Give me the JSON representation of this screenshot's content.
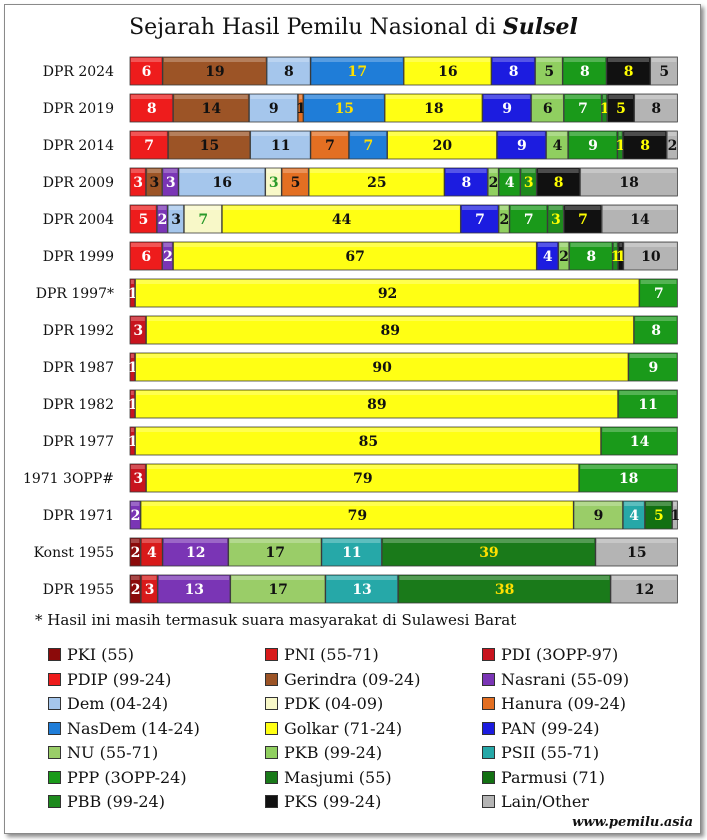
{
  "chart_data": {
    "type": "bar",
    "orientation": "horizontal",
    "stacked": true,
    "title_main": "Sejarah Hasil Pemilu Nasional di ",
    "title_emph": "Sulsel",
    "footnote": "* Hasil ini masih termasuk suara masyarakat di Sulawesi Barat",
    "credit": "www.pemilu.asia",
    "rows": [
      {
        "label": "DPR 2024",
        "segments": [
          {
            "party": "PDIP",
            "value": 6,
            "label": "6"
          },
          {
            "party": "Gerindra",
            "value": 19,
            "label": "19"
          },
          {
            "party": "Dem",
            "value": 8,
            "label": "8"
          },
          {
            "party": "NasDem",
            "value": 17,
            "label": "17"
          },
          {
            "party": "Golkar",
            "value": 16,
            "label": "16"
          },
          {
            "party": "PAN",
            "value": 8,
            "label": "8"
          },
          {
            "party": "PKB",
            "value": 5,
            "label": "5"
          },
          {
            "party": "PPP",
            "value": 8,
            "label": "8"
          },
          {
            "party": "PKS",
            "value": 8,
            "label": "8"
          },
          {
            "party": "Lain/Other",
            "value": 5,
            "label": "5"
          }
        ]
      },
      {
        "label": "DPR 2019",
        "segments": [
          {
            "party": "PDIP",
            "value": 8,
            "label": "8"
          },
          {
            "party": "Gerindra",
            "value": 14,
            "label": "14"
          },
          {
            "party": "Dem",
            "value": 9,
            "label": "9"
          },
          {
            "party": "Hanura",
            "value": 1,
            "label": "1"
          },
          {
            "party": "NasDem",
            "value": 15,
            "label": "15"
          },
          {
            "party": "Golkar",
            "value": 18,
            "label": "18"
          },
          {
            "party": "PAN",
            "value": 9,
            "label": "9"
          },
          {
            "party": "PKB",
            "value": 6,
            "label": "6"
          },
          {
            "party": "PPP",
            "value": 7,
            "label": "7"
          },
          {
            "party": "PBB",
            "value": 1,
            "label": "1"
          },
          {
            "party": "PKS",
            "value": 5,
            "label": "5"
          },
          {
            "party": "Lain/Other",
            "value": 8,
            "label": "8"
          }
        ]
      },
      {
        "label": "DPR 2014",
        "segments": [
          {
            "party": "PDIP",
            "value": 7,
            "label": "7"
          },
          {
            "party": "Gerindra",
            "value": 15,
            "label": "15"
          },
          {
            "party": "Dem",
            "value": 11,
            "label": "11"
          },
          {
            "party": "Hanura",
            "value": 7,
            "label": "7"
          },
          {
            "party": "NasDem",
            "value": 7,
            "label": "7"
          },
          {
            "party": "Golkar",
            "value": 20,
            "label": "20"
          },
          {
            "party": "PAN",
            "value": 9,
            "label": "9"
          },
          {
            "party": "PKB",
            "value": 4,
            "label": "4"
          },
          {
            "party": "PPP",
            "value": 9,
            "label": "9"
          },
          {
            "party": "PBB",
            "value": 1,
            "label": "1"
          },
          {
            "party": "PKS",
            "value": 8,
            "label": "8"
          },
          {
            "party": "Lain/Other",
            "value": 2,
            "label": "2"
          }
        ]
      },
      {
        "label": "DPR 2009",
        "segments": [
          {
            "party": "PDIP",
            "value": 3,
            "label": "3"
          },
          {
            "party": "Gerindra",
            "value": 3,
            "label": "3"
          },
          {
            "party": "Nasrani",
            "value": 3,
            "label": "3"
          },
          {
            "party": "Dem",
            "value": 16,
            "label": "16"
          },
          {
            "party": "PDK",
            "value": 3,
            "label": "3"
          },
          {
            "party": "Hanura",
            "value": 5,
            "label": "5"
          },
          {
            "party": "Golkar",
            "value": 25,
            "label": "25"
          },
          {
            "party": "PAN",
            "value": 8,
            "label": "8"
          },
          {
            "party": "PKB",
            "value": 2,
            "label": "2"
          },
          {
            "party": "PPP",
            "value": 4,
            "label": "4"
          },
          {
            "party": "PBB",
            "value": 3,
            "label": "3"
          },
          {
            "party": "PKS",
            "value": 8,
            "label": "8"
          },
          {
            "party": "Lain/Other",
            "value": 18,
            "label": "18"
          }
        ]
      },
      {
        "label": "DPR 2004",
        "segments": [
          {
            "party": "PDIP",
            "value": 5,
            "label": "5"
          },
          {
            "party": "Nasrani",
            "value": 2,
            "label": "2"
          },
          {
            "party": "Dem",
            "value": 3,
            "label": "3"
          },
          {
            "party": "PDK",
            "value": 7,
            "label": "7"
          },
          {
            "party": "Golkar",
            "value": 44,
            "label": "44"
          },
          {
            "party": "PAN",
            "value": 7,
            "label": "7"
          },
          {
            "party": "PKB",
            "value": 2,
            "label": "2"
          },
          {
            "party": "PPP",
            "value": 7,
            "label": "7"
          },
          {
            "party": "PBB",
            "value": 3,
            "label": "3"
          },
          {
            "party": "PKS",
            "value": 7,
            "label": "7"
          },
          {
            "party": "Lain/Other",
            "value": 14,
            "label": "14"
          }
        ]
      },
      {
        "label": "DPR 1999",
        "segments": [
          {
            "party": "PDIP",
            "value": 6,
            "label": "6"
          },
          {
            "party": "Nasrani",
            "value": 2,
            "label": "2"
          },
          {
            "party": "Golkar",
            "value": 67,
            "label": "67"
          },
          {
            "party": "PAN",
            "value": 4,
            "label": "4"
          },
          {
            "party": "PKB",
            "value": 2,
            "label": "2"
          },
          {
            "party": "PPP",
            "value": 8,
            "label": "8"
          },
          {
            "party": "PBB",
            "value": 1,
            "label": "1"
          },
          {
            "party": "PKS",
            "value": 1,
            "label": "1"
          },
          {
            "party": "Lain/Other",
            "value": 10,
            "label": "10"
          }
        ]
      },
      {
        "label": "DPR 1997*",
        "segments": [
          {
            "party": "PDI",
            "value": 1,
            "label": "1"
          },
          {
            "party": "Golkar",
            "value": 92,
            "label": "92"
          },
          {
            "party": "PPP",
            "value": 7,
            "label": "7"
          }
        ]
      },
      {
        "label": "DPR 1992",
        "segments": [
          {
            "party": "PDI",
            "value": 3,
            "label": "3"
          },
          {
            "party": "Golkar",
            "value": 89,
            "label": "89"
          },
          {
            "party": "PPP",
            "value": 8,
            "label": "8"
          }
        ]
      },
      {
        "label": "DPR 1987",
        "segments": [
          {
            "party": "PDI",
            "value": 1,
            "label": "1"
          },
          {
            "party": "Golkar",
            "value": 90,
            "label": "90"
          },
          {
            "party": "PPP",
            "value": 9,
            "label": "9"
          }
        ]
      },
      {
        "label": "DPR 1982",
        "segments": [
          {
            "party": "PDI",
            "value": 1,
            "label": "1"
          },
          {
            "party": "Golkar",
            "value": 89,
            "label": "89"
          },
          {
            "party": "PPP",
            "value": 11,
            "label": "11"
          }
        ]
      },
      {
        "label": "DPR 1977",
        "segments": [
          {
            "party": "PDI",
            "value": 1,
            "label": "1"
          },
          {
            "party": "Golkar",
            "value": 85,
            "label": "85"
          },
          {
            "party": "PPP",
            "value": 14,
            "label": "14"
          }
        ]
      },
      {
        "label": "1971 3OPP#",
        "segments": [
          {
            "party": "PDI",
            "value": 3,
            "label": "3"
          },
          {
            "party": "Golkar",
            "value": 79,
            "label": "79"
          },
          {
            "party": "PPP",
            "value": 18,
            "label": "18"
          }
        ]
      },
      {
        "label": "DPR 1971",
        "segments": [
          {
            "party": "Nasrani",
            "value": 2,
            "label": "2"
          },
          {
            "party": "Golkar",
            "value": 79,
            "label": "79"
          },
          {
            "party": "NU",
            "value": 9,
            "label": "9"
          },
          {
            "party": "PSII",
            "value": 4,
            "label": "4"
          },
          {
            "party": "Parmusi",
            "value": 5,
            "label": "5"
          },
          {
            "party": "Lain/Other",
            "value": 1,
            "label": "1"
          }
        ]
      },
      {
        "label": "Konst 1955",
        "segments": [
          {
            "party": "PKI",
            "value": 2,
            "label": "2"
          },
          {
            "party": "PNI",
            "value": 4,
            "label": "4"
          },
          {
            "party": "Nasrani",
            "value": 12,
            "label": "12"
          },
          {
            "party": "NU",
            "value": 17,
            "label": "17"
          },
          {
            "party": "PSII",
            "value": 11,
            "label": "11"
          },
          {
            "party": "Masjumi",
            "value": 39,
            "label": "39"
          },
          {
            "party": "Lain/Other",
            "value": 15,
            "label": "15"
          }
        ]
      },
      {
        "label": "DPR 1955",
        "segments": [
          {
            "party": "PKI",
            "value": 2,
            "label": "2"
          },
          {
            "party": "PNI",
            "value": 3,
            "label": "3"
          },
          {
            "party": "Nasrani",
            "value": 13,
            "label": "13"
          },
          {
            "party": "NU",
            "value": 17,
            "label": "17"
          },
          {
            "party": "PSII",
            "value": 13,
            "label": "13"
          },
          {
            "party": "Masjumi",
            "value": 38,
            "label": "38"
          },
          {
            "party": "Lain/Other",
            "value": 12,
            "label": "12"
          }
        ]
      }
    ],
    "legend": [
      {
        "party": "PKI",
        "text": "PKI (55)",
        "color": "#8b0a0a"
      },
      {
        "party": "PNI",
        "text": "PNI (55-71)",
        "color": "#d81a1a"
      },
      {
        "party": "PDI",
        "text": "PDI (3OPP-97)",
        "color": "#c8141e"
      },
      {
        "party": "PDIP",
        "text": "PDIP (99-24)",
        "color": "#ee1c1c"
      },
      {
        "party": "Gerindra",
        "text": "Gerindra (09-24)",
        "color": "#9c5426"
      },
      {
        "party": "Nasrani",
        "text": "Nasrani (55-09)",
        "color": "#7a35b5"
      },
      {
        "party": "Dem",
        "text": "Dem (04-24)",
        "color": "#a5c6ec"
      },
      {
        "party": "PDK",
        "text": "PDK (04-09)",
        "color": "#f8f8c8"
      },
      {
        "party": "Hanura",
        "text": "Hanura (09-24)",
        "color": "#e36f22"
      },
      {
        "party": "NasDem",
        "text": "NasDem (14-24)",
        "color": "#1f7dd8"
      },
      {
        "party": "Golkar",
        "text": "Golkar (71-24)",
        "color": "#ffff14"
      },
      {
        "party": "PAN",
        "text": "PAN (99-24)",
        "color": "#1c1ce0"
      },
      {
        "party": "NU",
        "text": "NU (55-71)",
        "color": "#9acd68"
      },
      {
        "party": "PKB",
        "text": "PKB (99-24)",
        "color": "#90cf60"
      },
      {
        "party": "PSII",
        "text": "PSII (55-71)",
        "color": "#26a8a8"
      },
      {
        "party": "PPP",
        "text": "PPP (3OPP-24)",
        "color": "#1a9a1a"
      },
      {
        "party": "Masjumi",
        "text": "Masjumi (55)",
        "color": "#1a7a1a"
      },
      {
        "party": "Parmusi",
        "text": "Parmusi (71)",
        "color": "#127012"
      },
      {
        "party": "PBB",
        "text": "PBB (99-24)",
        "color": "#1e8a1e"
      },
      {
        "party": "PKS",
        "text": "PKS (99-24)",
        "color": "#111111"
      },
      {
        "party": "Lain/Other",
        "text": "Lain/Other",
        "color": "#b4b4b4"
      }
    ],
    "label_colors": {
      "PKI": "#ffffff",
      "PNI": "#ffffff",
      "PDI": "#ffffff",
      "PDIP": "#ffffff",
      "Gerindra": "#111111",
      "Nasrani": "#ffffff",
      "Dem": "#111111",
      "PDK": "#2a9a2a",
      "Hanura": "#111111",
      "NasDem": "#ffe000",
      "Golkar": "#111111",
      "PAN": "#ffffff",
      "NU": "#111111",
      "PKB": "#111111",
      "PSII": "#ffffff",
      "PPP": "#ffffff",
      "Masjumi": "#ffe000",
      "Parmusi": "#ffff00",
      "PBB": "#ffff00",
      "PKS": "#ffff00",
      "Lain/Other": "#111111"
    }
  }
}
